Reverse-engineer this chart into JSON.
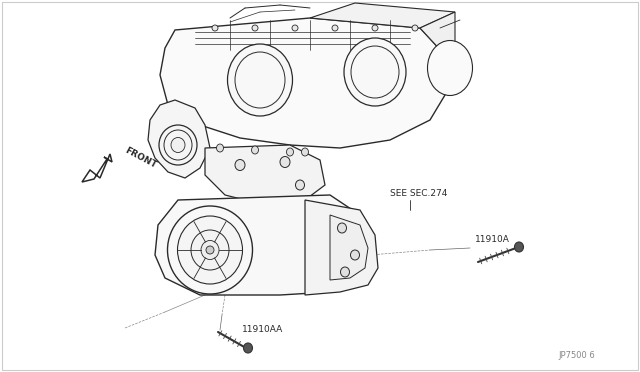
{
  "bg_color": "#ffffff",
  "line_color": "#2a2a2a",
  "label_front": "FRONT",
  "label_sec274": "SEE SEC.274",
  "label_11910A": "11910A",
  "label_11910AA": "11910AA",
  "label_jp7500": "JP7500 6",
  "fig_width": 6.4,
  "fig_height": 3.72,
  "dpi": 100,
  "border_color": "#cccccc"
}
